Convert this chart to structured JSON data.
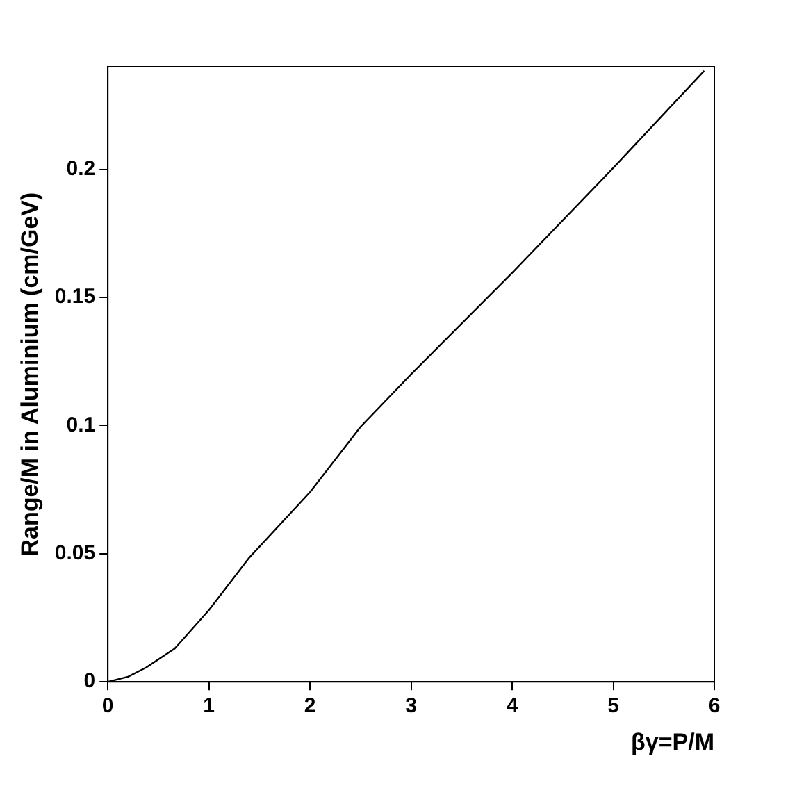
{
  "chart_data": {
    "type": "line",
    "xlabel": "βγ=P/M",
    "ylabel": "Range/M in Aluminium (cm/GeV)",
    "x": [
      0,
      0.2,
      0.38,
      0.66,
      1,
      1.4,
      2,
      2.5,
      3,
      4,
      5,
      5.9
    ],
    "series": [
      {
        "color": "#000000",
        "values": [
          0,
          0.002,
          0.0056,
          0.0129,
          0.028,
          0.0485,
          0.074,
          0.0995,
          0.12,
          0.1596,
          0.2005,
          0.2384
        ]
      }
    ],
    "xlim": [
      0,
      6
    ],
    "ylim": [
      0,
      0.24
    ],
    "xticks": [
      0,
      1,
      2,
      3,
      4,
      5,
      6
    ],
    "yticks": [
      0,
      0.05,
      0.1,
      0.15,
      0.2
    ],
    "grid": false,
    "legend": false,
    "marker": "none",
    "line_style": "solid"
  }
}
